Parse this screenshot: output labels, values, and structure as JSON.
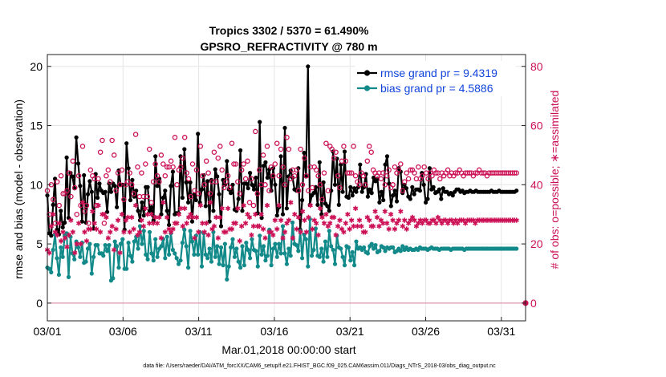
{
  "chart_data": {
    "type": "line",
    "title_line1": "Tropics 3302 / 5370 = 61.490%",
    "title_line2": "GPSRO_REFRACTIVITY @ 780 m",
    "xlabel": "Mar.01,2018 00:00:00 start",
    "ylabel": "rmse and bias (model - observation)",
    "y2label": "# of obs: o=possible; ∗=assimilated",
    "xlim": [
      0,
      31.6
    ],
    "ylim": [
      -1.5,
      21
    ],
    "y2lim": [
      -6,
      84
    ],
    "x_tick_values": [
      0,
      5,
      10,
      15,
      20,
      25,
      30
    ],
    "x_tick_labels": [
      "03/01",
      "03/06",
      "03/11",
      "03/16",
      "03/21",
      "03/26",
      "03/31"
    ],
    "y_ticks": [
      "0",
      "5",
      "10",
      "15",
      "20"
    ],
    "y2_ticks": [
      "0",
      "20",
      "40",
      "60",
      "80"
    ],
    "footer": "data file: /Users/raeder/DAI/ATM_forcXX/CAM6_setup/f.e21.FHIST_BGC.f09_025.CAM6assim.011/Diags_NTrS_2018-03/obs_diag_output.nc",
    "colors": {
      "rmse": "#000000",
      "bias": "#138a8a",
      "obs": "#cc1156",
      "legend_text": "#1144dd"
    },
    "series": [
      {
        "name": "rmse grand pr = 9.4319",
        "marker": "*",
        "values": [
          9.1,
          5.9,
          5.7,
          8.3,
          10.5,
          6.2,
          5.8,
          7.8,
          6.4,
          6.8,
          12.3,
          7.2,
          11.0,
          10.7,
          9.7,
          14.0,
          11.8,
          9.9,
          6.9,
          10.8,
          6.8,
          9.2,
          10.3,
          9.4,
          6.3,
          10.9,
          8.9,
          10.1,
          9.5,
          9.3,
          9.4,
          7.7,
          10.1,
          9.4,
          10.1,
          9.9,
          8.1,
          11.2,
          10.0,
          10.0,
          6.2,
          13.5,
          11.4,
          8.7,
          10.4,
          9.0,
          9.5,
          7.8,
          7.0,
          8.5,
          7.4,
          9.8,
          9.8,
          7.8,
          8.1,
          7.0,
          12.4,
          9.9,
          10.5,
          7.5,
          8.9,
          9.5,
          7.8,
          6.6,
          9.9,
          11.1,
          7.5,
          7.6,
          7.6,
          12.4,
          8.9,
          13.0,
          10.2,
          8.5,
          10.2,
          6.9,
          9.2,
          8.7,
          14.3,
          8.5,
          9.6,
          10.8,
          8.2,
          10.3,
          6.9,
          10.4,
          7.8,
          11.3,
          10.7,
          9.2,
          6.5,
          10.4,
          10.0,
          12.0,
          9.6,
          9.3,
          10.0,
          7.9,
          7.8,
          8.8,
          12.9,
          7.8,
          10.1,
          10.1,
          9.7,
          11.0,
          10.0,
          9.6,
          10.6,
          7.6,
          15.3,
          7.2,
          11.6,
          11.9,
          10.6,
          11.3,
          9.5,
          11.4,
          10.0,
          7.4,
          8.1,
          12.4,
          7.5,
          14.8,
          8.0,
          10.7,
          11.2,
          10.6,
          9.6,
          9.5,
          11.4,
          6.2,
          8.7,
          12.7,
          10.7,
          20.0,
          8.3,
          9.1,
          9.3,
          9.8,
          8.3,
          11.9,
          7.5,
          10.2,
          8.4,
          8.2,
          7.8,
          9.5,
          12.8,
          10.0,
          12.2,
          8.3,
          11.7,
          9.4,
          12.8,
          9.0,
          8.9,
          9.8,
          9.1,
          9.7,
          9.4,
          9.8,
          11.7,
          9.4,
          9.8,
          10.9,
          9.0,
          9.6,
          9.3,
          10.6,
          10.3,
          10.5,
          8.5,
          9.4,
          8.7,
          11.7,
          12.4,
          10.1,
          8.2,
          9.1,
          9.5,
          8.6,
          11.4,
          11.1,
          9.3,
          10.0,
          9.7,
          9.0,
          8.8,
          9.8,
          9.2,
          9.6,
          9.6,
          9.5,
          11.0,
          10.0,
          8.5,
          8.8,
          11.4,
          9.6,
          9.8,
          9.3,
          9.4,
          9.6,
          8.8,
          9.7,
          9.4,
          9.4,
          9.2,
          9.3,
          9.1,
          9.4,
          9.6,
          9.6,
          9.4,
          9.5,
          9.3,
          9.4,
          9.4,
          9.5,
          9.4,
          9.4,
          9.5,
          9.4,
          9.4,
          9.4,
          9.4,
          9.4,
          9.4,
          9.4,
          9.5,
          9.4,
          9.4,
          9.4,
          9.5,
          9.4,
          9.4,
          9.4,
          9.4,
          9.4,
          9.4,
          9.4,
          9.4,
          9.5
        ]
      },
      {
        "name": "bias grand pr = 4.5886",
        "marker": "o",
        "values": [
          3.0,
          2.9,
          2.6,
          4.5,
          5.8,
          3.8,
          2.4,
          4.7,
          3.9,
          5.7,
          5.9,
          2.2,
          5.6,
          4.2,
          3.7,
          5.2,
          4.7,
          3.9,
          5.1,
          3.4,
          3.5,
          4.6,
          5.0,
          2.5,
          3.9,
          4.9,
          4.9,
          4.2,
          4.2,
          4.0,
          4.9,
          4.4,
          4.9,
          1.9,
          2.1,
          5.2,
          4.8,
          3.0,
          5.0,
          5.4,
          2.9,
          2.9,
          5.1,
          4.0,
          3.5,
          5.2,
          5.6,
          4.6,
          6.5,
          5.0,
          6.1,
          4.1,
          3.7,
          6.0,
          4.2,
          3.6,
          5.4,
          3.9,
          4.6,
          4.8,
          5.4,
          3.8,
          5.6,
          4.1,
          5.9,
          4.5,
          4.2,
          3.8,
          3.3,
          3.6,
          5.1,
          6.2,
          4.8,
          3.0,
          6.1,
          5.2,
          4.1,
          5.7,
          4.1,
          6.0,
          3.1,
          5.9,
          4.1,
          3.8,
          4.6,
          3.5,
          6.0,
          3.9,
          4.8,
          3.3,
          4.7,
          3.2,
          5.0,
          2.0,
          3.1,
          4.7,
          5.4,
          3.9,
          4.6,
          3.5,
          3.0,
          4.8,
          3.2,
          5.1,
          4.5,
          3.8,
          5.4,
          4.5,
          4.4,
          3.1,
          5.7,
          4.1,
          4.8,
          3.6,
          4.0,
          6.2,
          3.2,
          4.6,
          5.0,
          3.9,
          5.0,
          4.2,
          6.5,
          4.2,
          3.3,
          4.6,
          4.0,
          6.8,
          5.0,
          4.9,
          4.4,
          6.1,
          3.8,
          5.8,
          5.4,
          3.1,
          7.1,
          4.0,
          4.5,
          6.3,
          4.0,
          3.9,
          4.6,
          3.5,
          5.2,
          3.9,
          6.1,
          4.8,
          4.5,
          3.3,
          5.7,
          4.7,
          4.6,
          3.9,
          3.2,
          4.8,
          4.7,
          3.6,
          4.3,
          3.2,
          5.2,
          4.6,
          4.7,
          4.5,
          4.7,
          4.3,
          4.2,
          4.8,
          5.0,
          4.6,
          4.9,
          4.3,
          4.4,
          4.8,
          4.7,
          4.4,
          4.7,
          4.6,
          4.7,
          4.7,
          4.3,
          4.4,
          4.6,
          4.4,
          4.8,
          4.5,
          4.7,
          4.5,
          4.6,
          4.5,
          4.5,
          4.6,
          4.5,
          4.7,
          4.6,
          4.6,
          4.6,
          4.5,
          4.6,
          4.7,
          4.6,
          4.6,
          4.6,
          4.5,
          4.6,
          4.6,
          4.6,
          4.6,
          4.6,
          4.5,
          4.6,
          4.6,
          4.6,
          4.6,
          4.6,
          4.6,
          4.5,
          4.6,
          4.6,
          4.6,
          4.6,
          4.6,
          4.6,
          4.6,
          4.6,
          4.6,
          4.6,
          4.6,
          4.6,
          4.6,
          4.6,
          4.6,
          4.6,
          4.6,
          4.6,
          4.6,
          4.6,
          4.6,
          4.6,
          4.6,
          4.6,
          4.6,
          4.6,
          4.6
        ]
      }
    ],
    "obs_possible": [
      38,
      30,
      40,
      35,
      27,
      41,
      33,
      43,
      37,
      37,
      38,
      44,
      36,
      48,
      39,
      30,
      43,
      33,
      53,
      31,
      33,
      27,
      45,
      43,
      42,
      33,
      42,
      51,
      55,
      27,
      43,
      45,
      41,
      55,
      50,
      38,
      44,
      40,
      45,
      35,
      40,
      41,
      44,
      40,
      37,
      57,
      46,
      36,
      44,
      36,
      47,
      36,
      52,
      34,
      41,
      47,
      43,
      41,
      50,
      47,
      43,
      46,
      46,
      48,
      46,
      56,
      40,
      45,
      46,
      49,
      56,
      44,
      42,
      36,
      47,
      38,
      45,
      37,
      53,
      43,
      40,
      48,
      44,
      37,
      41,
      51,
      41,
      49,
      53,
      45,
      39,
      41,
      43,
      39,
      54,
      47,
      47,
      41,
      37,
      45,
      47,
      42,
      48,
      34,
      42,
      33,
      58,
      37,
      45,
      40,
      50,
      40,
      53,
      38,
      46,
      43,
      47,
      54,
      43,
      52,
      46,
      40,
      56,
      52,
      42,
      45,
      43,
      45,
      38,
      52,
      40,
      49,
      43,
      38,
      46,
      39,
      46,
      45,
      43,
      40,
      35,
      44,
      54,
      38,
      53,
      52,
      49,
      51,
      43,
      39,
      48,
      53,
      48,
      44,
      44,
      44,
      53,
      43,
      41,
      40,
      44,
      43,
      40,
      48,
      53,
      51,
      45,
      44,
      43,
      44,
      42,
      44,
      40,
      43,
      45,
      39,
      40,
      46,
      44,
      45,
      47,
      38,
      41,
      44,
      42,
      45,
      45,
      44,
      42,
      46,
      42,
      43,
      46,
      44,
      42,
      44,
      43,
      45,
      44,
      44,
      42,
      44,
      43,
      44,
      45,
      43,
      44,
      43,
      44,
      44,
      45,
      44,
      43,
      44,
      44,
      44,
      44,
      43,
      44,
      44,
      45,
      44,
      44,
      44,
      43,
      44,
      44,
      44,
      44,
      44,
      44,
      44,
      44,
      44,
      44,
      44,
      44,
      44,
      44,
      44
    ],
    "obs_assimilated": [
      18,
      17,
      26,
      30,
      24,
      23,
      27,
      21,
      24,
      22,
      19,
      23,
      28,
      24,
      17,
      20,
      27,
      20,
      34,
      24,
      21,
      25,
      25,
      31,
      27,
      25,
      33,
      24,
      30,
      30,
      29,
      22,
      24,
      26,
      18,
      25,
      28,
      17,
      30,
      24,
      28,
      29,
      24,
      29,
      25,
      33,
      23,
      24,
      28,
      26,
      32,
      30,
      27,
      30,
      27,
      29,
      27,
      29,
      22,
      34,
      24,
      29,
      25,
      24,
      25,
      27,
      27,
      30,
      32,
      26,
      32,
      27,
      29,
      30,
      29,
      22,
      29,
      24,
      33,
      27,
      24,
      27,
      23,
      34,
      25,
      26,
      29,
      22,
      29,
      32,
      24,
      24,
      32,
      25,
      25,
      27,
      27,
      32,
      21,
      26,
      33,
      27,
      30,
      29,
      23,
      26,
      30,
      26,
      26,
      30,
      25,
      22,
      33,
      24,
      24,
      23,
      28,
      25,
      33,
      28,
      22,
      24,
      27,
      28,
      34,
      22,
      30,
      25,
      29,
      24,
      31,
      28,
      24,
      29,
      33,
      25,
      28,
      27,
      23,
      32,
      29,
      27,
      30,
      26,
      27,
      29,
      29,
      23,
      26,
      28,
      25,
      24,
      27,
      30,
      25,
      28,
      26,
      32,
      26,
      28,
      26,
      24,
      24,
      29,
      28,
      26,
      26,
      31,
      29,
      26,
      28,
      27,
      31,
      27,
      25,
      30,
      28,
      25,
      27,
      28,
      31,
      26,
      28,
      25,
      27,
      28,
      29,
      28,
      26,
      27,
      28,
      27,
      28,
      28,
      27,
      27,
      28,
      28,
      27,
      29,
      28,
      27,
      28,
      28,
      27,
      28,
      28,
      27,
      28,
      27,
      28,
      28,
      28,
      27,
      28,
      28,
      28,
      28,
      27,
      28,
      28,
      28,
      28,
      28,
      28,
      28,
      28,
      28,
      28,
      28,
      28,
      28,
      28,
      28,
      28,
      28,
      28,
      28,
      28,
      28
    ]
  }
}
